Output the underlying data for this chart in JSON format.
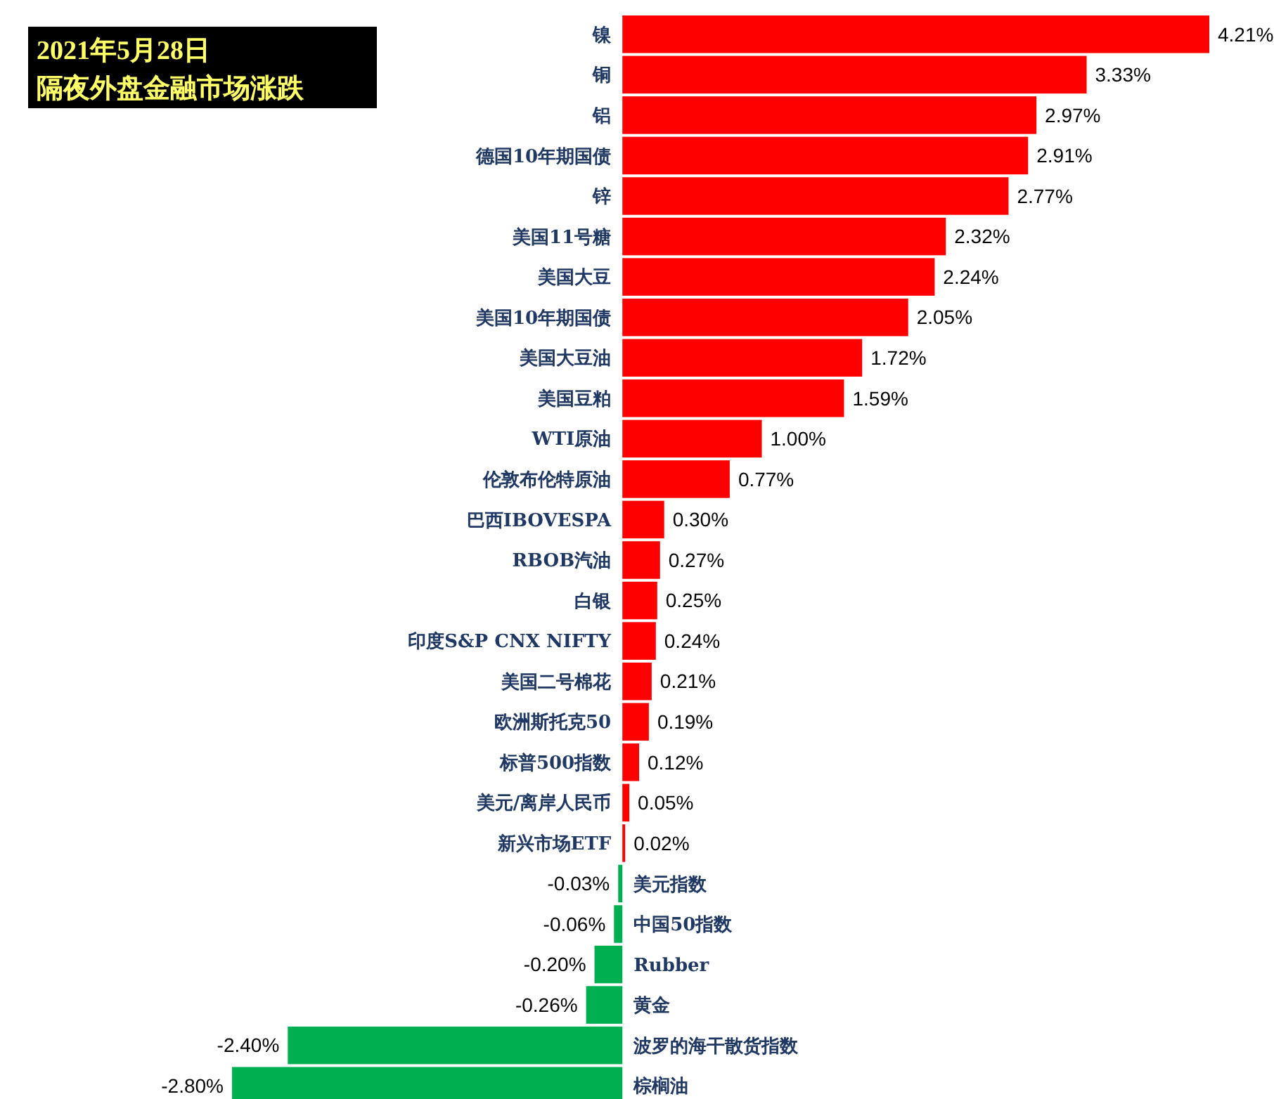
{
  "chart_data": {
    "type": "bar",
    "orientation": "horizontal",
    "title": "2021年5月28日",
    "subtitle": "隔夜外盘金融市场涨跌",
    "categories": [
      "镍",
      "铜",
      "铝",
      "德国10年期国债",
      "锌",
      "美国11号糖",
      "美国大豆",
      "美国10年期国债",
      "美国大豆油",
      "美国豆粕",
      "WTI原油",
      "伦敦布伦特原油",
      "巴西IBOVESPA",
      "RBOB汽油",
      "白银",
      "印度S&P CNX NIFTY",
      "美国二号棉花",
      "欧洲斯托克50",
      "标普500指数",
      "美元/离岸人民币",
      "新兴市场ETF",
      "美元指数",
      "中国50指数",
      "Rubber",
      "黄金",
      "波罗的海干散货指数",
      "棕榈油"
    ],
    "values": [
      4.21,
      3.33,
      2.97,
      2.91,
      2.77,
      2.32,
      2.24,
      2.05,
      1.72,
      1.59,
      1.0,
      0.77,
      0.3,
      0.27,
      0.25,
      0.24,
      0.21,
      0.19,
      0.12,
      0.05,
      0.02,
      -0.03,
      -0.06,
      -0.2,
      -0.26,
      -2.4,
      -2.8
    ],
    "value_labels": [
      "4.21%",
      "3.33%",
      "2.97%",
      "2.91%",
      "2.77%",
      "2.32%",
      "2.24%",
      "2.05%",
      "1.72%",
      "1.59%",
      "1.00%",
      "0.77%",
      "0.30%",
      "0.27%",
      "0.25%",
      "0.24%",
      "0.21%",
      "0.19%",
      "0.12%",
      "0.05%",
      "0.02%",
      "-0.03%",
      "-0.06%",
      "-0.20%",
      "-0.26%",
      "-2.40%",
      "-2.80%"
    ],
    "colors": [
      "#ff0000",
      "#ff0000",
      "#ff0000",
      "#ff0000",
      "#ff0000",
      "#ff0000",
      "#ff0000",
      "#ff0000",
      "#ff0000",
      "#ff0000",
      "#ff0000",
      "#ff0000",
      "#ff0000",
      "#ff0000",
      "#ff0000",
      "#ff0000",
      "#ff0000",
      "#ff0000",
      "#ff0000",
      "#ff0000",
      "#ff0000",
      "#00b050",
      "#00b050",
      "#00b050",
      "#00b050",
      "#00b050",
      "#00b050"
    ]
  }
}
